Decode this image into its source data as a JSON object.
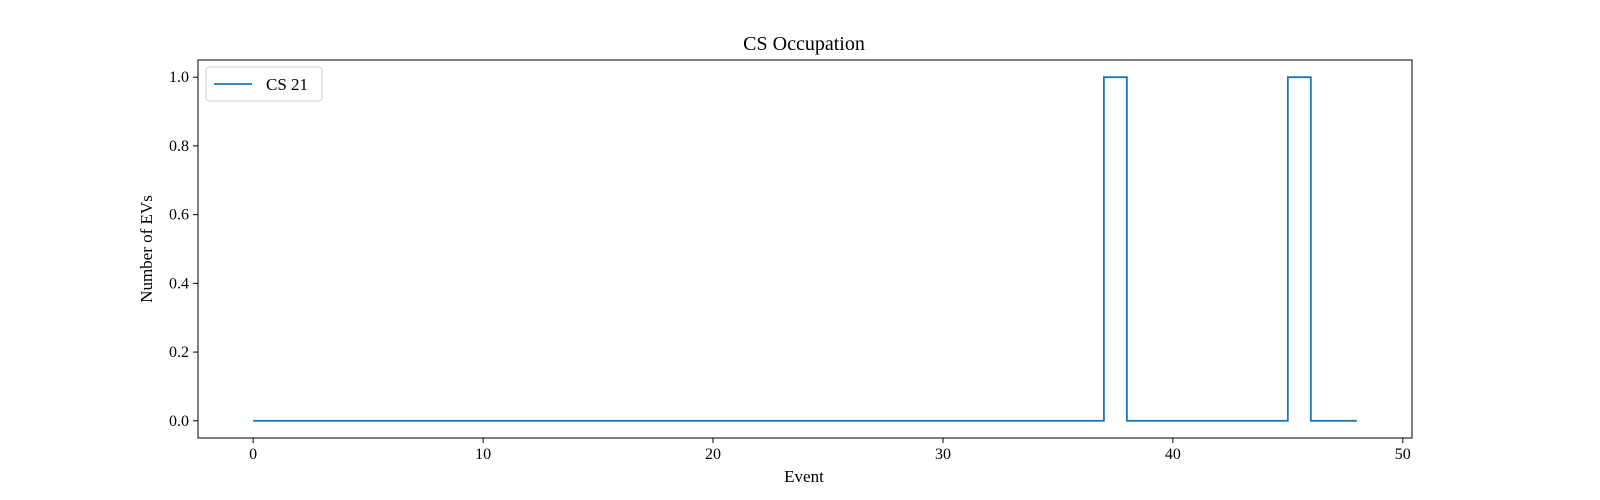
{
  "chart_data": {
    "type": "line",
    "step": true,
    "title": "CS Occupation",
    "xlabel": "Event",
    "ylabel": "Number of EVs",
    "xlim": [
      -2.4,
      50.4
    ],
    "ylim": [
      -0.05,
      1.05
    ],
    "xticks": [
      0,
      10,
      20,
      30,
      40,
      50
    ],
    "yticks": [
      0.0,
      0.2,
      0.4,
      0.6,
      0.8,
      1.0
    ],
    "xtick_labels": [
      "0",
      "10",
      "20",
      "30",
      "40",
      "50"
    ],
    "ytick_labels": [
      "0.0",
      "0.2",
      "0.4",
      "0.6",
      "0.8",
      "1.0"
    ],
    "grid": false,
    "legend_position": "top-left",
    "series": [
      {
        "name": "CS 21",
        "color": "#1f77b4",
        "x": [
          0,
          37,
          38,
          45,
          46,
          48
        ],
        "y": [
          0,
          1,
          0,
          1,
          0,
          0
        ]
      }
    ]
  }
}
